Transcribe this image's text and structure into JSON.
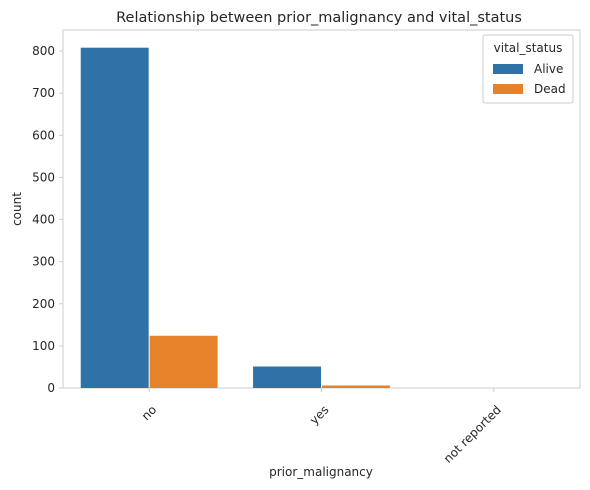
{
  "chart_data": {
    "type": "bar",
    "title": "Relationship between prior_malignancy and vital_status",
    "xlabel": "prior_malignancy",
    "ylabel": "count",
    "categories": [
      "no",
      "yes",
      "not reported"
    ],
    "series": [
      {
        "name": "Alive",
        "color": "#2f72a8",
        "values": [
          808,
          51,
          0
        ]
      },
      {
        "name": "Dead",
        "color": "#e6832a",
        "values": [
          124,
          6,
          0
        ]
      }
    ],
    "ylim": [
      0,
      850
    ],
    "yticks": [
      0,
      100,
      200,
      300,
      400,
      500,
      600,
      700,
      800
    ],
    "grid": false,
    "legend": {
      "title": "vital_status",
      "placement": "top-right"
    },
    "xtick_rotation": 45
  }
}
